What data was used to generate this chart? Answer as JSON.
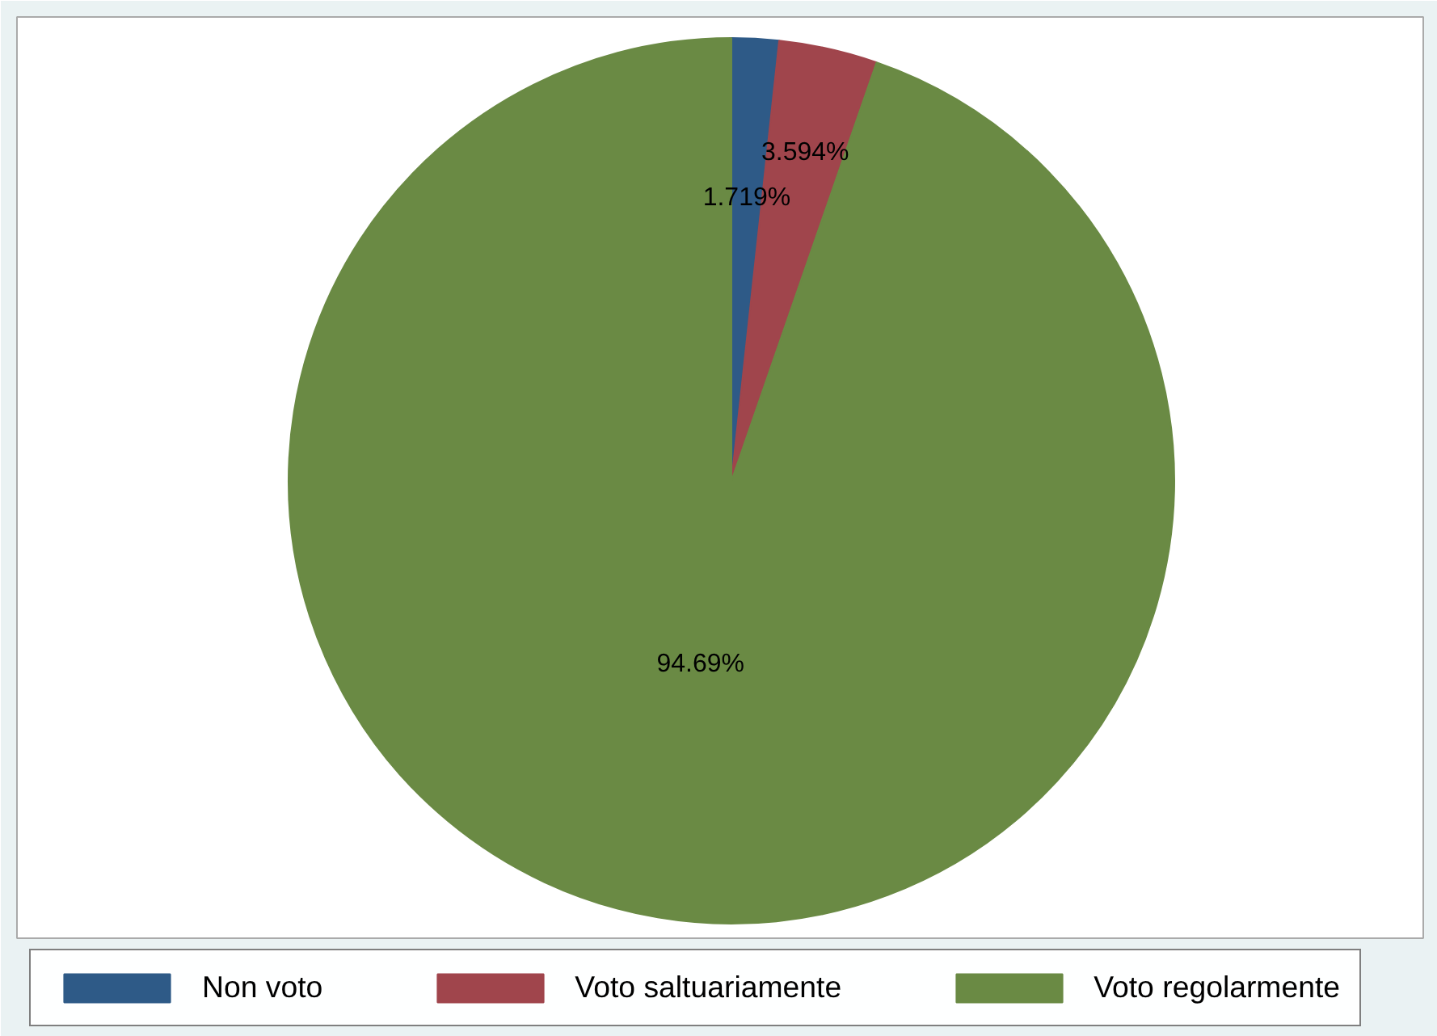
{
  "chart_data": {
    "type": "pie",
    "categories": [
      "Non voto",
      "Voto saltuariamente",
      "Voto regolarmente"
    ],
    "values": [
      1.719,
      3.594,
      94.69
    ],
    "value_labels": [
      "1.719%",
      "3.594%",
      "94.69%"
    ],
    "colors": [
      "#2e5a87",
      "#a0454c",
      "#6a8a44"
    ],
    "legend": "bottom"
  }
}
